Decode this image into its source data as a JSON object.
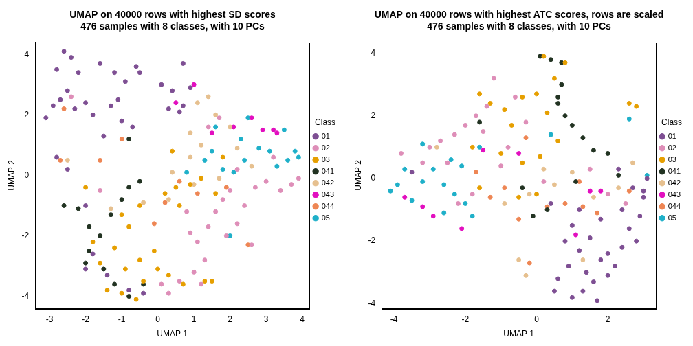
{
  "chart_data": [
    {
      "type": "scatter",
      "title": "UMAP on 40000 rows with highest SD scores\n476 samples with 8 classes, with 10 PCs",
      "x_label": "UMAP 1",
      "y_label": "UMAP 2",
      "legend_title": "Class",
      "legend": "right",
      "grid": false,
      "xlim": [
        -3.4,
        4.2
      ],
      "xticks": [
        -3,
        -2,
        -1,
        0,
        1,
        2,
        3,
        4
      ],
      "ylim": [
        -4.4,
        4.4
      ],
      "yticks": [
        -4,
        -2,
        0,
        2,
        4
      ],
      "series": [
        {
          "name": "01",
          "color": "#7E4F93",
          "x": [
            -2.8,
            -2.6,
            -2.4,
            -2.2,
            -2.9,
            -3.1,
            -2.7,
            -2.3,
            -2.0,
            -1.8,
            -1.6,
            -1.2,
            -0.9,
            -0.6,
            -0.5,
            -1.5,
            -1.0,
            -0.7,
            -2.8,
            -2.5,
            0.1,
            0.4,
            0.7,
            0.9,
            0.3,
            0.6,
            -2.0,
            -1.8,
            -2.0,
            -1.4,
            -0.8,
            -0.4,
            0.7,
            -1.3,
            -2.5,
            -1.1
          ],
          "y": [
            3.5,
            4.1,
            3.9,
            3.4,
            2.3,
            1.9,
            2.5,
            2.2,
            2.4,
            2.0,
            3.7,
            3.4,
            3.1,
            3.6,
            3.4,
            1.3,
            1.8,
            1.6,
            0.6,
            0.2,
            3.0,
            2.8,
            3.7,
            2.9,
            2.2,
            2.1,
            -1.0,
            -2.6,
            -3.1,
            -3.3,
            -3.8,
            -3.9,
            2.3,
            2.3,
            2.8,
            2.5
          ]
        },
        {
          "name": "02",
          "color": "#DE8EB8",
          "x": [
            0.6,
            1.0,
            1.3,
            1.1,
            1.4,
            1.6,
            1.8,
            2.0,
            2.4,
            2.7,
            3.0,
            3.4,
            3.7,
            3.9,
            2.2,
            0.9,
            1.2,
            0.3,
            2.2,
            1.9,
            1.4,
            1.7,
            -2.4,
            -1.6,
            0.8,
            2.6,
            3.2,
            0.1
          ],
          "y": [
            -3.5,
            -3.2,
            -2.8,
            -2.2,
            -1.7,
            -1.2,
            -0.8,
            -0.5,
            -1.0,
            -0.4,
            -0.2,
            -0.5,
            -0.3,
            -0.1,
            0.2,
            -1.9,
            -3.6,
            -3.9,
            -1.6,
            -2.0,
            1.6,
            1.9,
            2.6,
            -0.5,
            -1.2,
            -2.3,
            0.6,
            -3.6
          ]
        },
        {
          "name": "03",
          "color": "#E69F00",
          "x": [
            -1.8,
            -1.6,
            -1.2,
            -0.9,
            -0.5,
            0.0,
            0.3,
            -1.0,
            -0.6,
            -1.4,
            -0.4,
            -0.1,
            -1.0,
            -0.8,
            -2.0,
            -0.5,
            0.2,
            0.5,
            0.9,
            1.2,
            1.6,
            0.7,
            1.3,
            1.5,
            0.4,
            0.6,
            1.8
          ],
          "y": [
            -2.2,
            -2.9,
            -2.4,
            -3.1,
            -2.8,
            -3.1,
            -3.3,
            -3.9,
            -4.1,
            -3.8,
            -3.5,
            -2.5,
            -1.3,
            -1.7,
            -0.4,
            -1.0,
            -0.6,
            -0.4,
            -0.3,
            -0.1,
            -0.6,
            -3.6,
            -3.5,
            -3.5,
            0.8,
            -1.0,
            0.6
          ]
        },
        {
          "name": "041",
          "color": "#223322",
          "x": [
            -2.6,
            -2.2,
            -1.9,
            -1.6,
            -1.9,
            -2.0,
            -1.5,
            -1.0,
            -0.8,
            -1.2,
            -0.8,
            -0.4,
            -0.8,
            -1.3,
            -0.5
          ],
          "y": [
            -1.0,
            -1.1,
            -1.7,
            -2.0,
            -2.5,
            -2.9,
            -3.1,
            -0.8,
            -0.4,
            -3.6,
            -4.0,
            -3.6,
            1.2,
            -1.3,
            -0.2
          ]
        },
        {
          "name": "042",
          "color": "#E6C08F",
          "x": [
            1.1,
            1.4,
            1.6,
            0.9,
            1.2,
            0.9,
            1.0,
            0.4,
            0.3,
            -0.4,
            1.7,
            2.2,
            2.6,
            -1.3,
            -2.5,
            2.0
          ],
          "y": [
            2.4,
            2.6,
            2.0,
            1.4,
            1.0,
            0.6,
            -0.3,
            0.1,
            -0.8,
            -0.9,
            -0.1,
            0.9,
            0.3,
            -1.1,
            0.5,
            1.6
          ]
        },
        {
          "name": "043",
          "color": "#E20FBF",
          "x": [
            1.0,
            1.5,
            2.1,
            2.6,
            2.9,
            3.2,
            3.3,
            0.5
          ],
          "y": [
            3.0,
            1.4,
            1.6,
            1.9,
            1.5,
            1.5,
            1.4,
            2.4
          ]
        },
        {
          "name": "044",
          "color": "#EE8654",
          "x": [
            -2.6,
            -2.7,
            -1.0,
            1.1,
            0.2,
            -0.1,
            0.6,
            2.5,
            -1.6,
            1.9
          ],
          "y": [
            2.2,
            0.5,
            1.2,
            -0.6,
            -0.9,
            -1.6,
            -0.2,
            -2.3,
            0.5,
            -0.4
          ]
        },
        {
          "name": "05",
          "color": "#1FB0C9",
          "x": [
            1.5,
            1.8,
            2.1,
            2.4,
            2.8,
            3.1,
            3.3,
            3.6,
            3.8,
            3.9,
            2.3,
            2.5,
            2.0,
            1.6,
            1.3,
            0.8,
            3.5
          ],
          "y": [
            0.8,
            0.2,
            0.1,
            0.5,
            0.9,
            0.8,
            0.3,
            0.5,
            0.8,
            0.6,
            1.2,
            1.9,
            -2.0,
            1.6,
            0.5,
            0.1,
            1.5
          ]
        }
      ]
    },
    {
      "type": "scatter",
      "title": "UMAP on 40000 rows with highest ATC scores, rows are scaled\n476 samples with 8 classes, with 10 PCs",
      "x_label": "UMAP 1",
      "y_label": "UMAP 2",
      "legend_title": "Class",
      "legend": "right",
      "grid": false,
      "xlim": [
        -4.35,
        3.35
      ],
      "xticks": [
        -4,
        -2,
        0,
        2
      ],
      "ylim": [
        -4.15,
        4.35
      ],
      "yticks": [
        -4,
        -2,
        0,
        2,
        4
      ],
      "series": [
        {
          "name": "01",
          "color": "#7E4F93",
          "x": [
            1.0,
            1.3,
            1.6,
            2.0,
            2.2,
            1.8,
            1.2,
            0.8,
            1.5,
            2.4,
            2.6,
            2.9,
            3.0,
            2.7,
            3.1,
            2.3,
            1.8,
            1.0,
            0.6,
            0.9,
            1.4,
            2.0,
            2.8,
            3.0,
            1.2,
            0.4,
            -3.5,
            0.5,
            1.7,
            2.4
          ],
          "y": [
            -3.8,
            -3.6,
            -3.3,
            -3.1,
            -2.8,
            -2.6,
            -2.3,
            -2.0,
            -1.9,
            -2.2,
            -1.6,
            -1.2,
            -0.6,
            -0.3,
            0.0,
            0.3,
            -1.3,
            -1.5,
            -3.2,
            -2.8,
            -3.0,
            -2.4,
            -2.0,
            -0.4,
            -1.0,
            -0.8,
            0.2,
            -3.6,
            -3.9,
            -1.0
          ]
        },
        {
          "name": "02",
          "color": "#DE8EB8",
          "x": [
            -3.0,
            -2.7,
            -2.3,
            -2.0,
            -1.7,
            -1.4,
            -1.2,
            -1.5,
            -2.5,
            -3.2,
            -3.8,
            -1.0,
            -0.8,
            -0.3,
            -1.8,
            -2.2,
            0.2,
            2.0,
            2.5,
            -0.6,
            1.5
          ],
          "y": [
            1.0,
            1.2,
            1.4,
            1.7,
            2.0,
            2.3,
            3.2,
            1.5,
            0.5,
            0.5,
            0.8,
            0.4,
            1.0,
            1.8,
            -0.5,
            -0.8,
            -0.1,
            -0.5,
            -0.8,
            2.6,
            0.3
          ]
        },
        {
          "name": "03",
          "color": "#E69F00",
          "x": [
            -1.6,
            -1.3,
            -0.9,
            -0.4,
            0.0,
            0.3,
            0.5,
            0.8,
            0.2,
            -0.7,
            -1.0,
            -0.4,
            -1.6,
            -0.5,
            0.1,
            0.6,
            2.6,
            2.8,
            -1.8,
            0.0
          ],
          "y": [
            2.7,
            2.4,
            2.2,
            2.6,
            2.7,
            2.1,
            3.2,
            3.7,
            3.9,
            1.7,
            0.8,
            0.5,
            -0.3,
            -0.6,
            0.7,
            1.2,
            2.4,
            2.3,
            1.0,
            -0.5
          ]
        },
        {
          "name": "041",
          "color": "#223322",
          "x": [
            0.1,
            0.4,
            0.7,
            0.7,
            0.6,
            0.8,
            1.0,
            1.3,
            1.6,
            0.6,
            -0.1,
            0.3,
            -0.4,
            2.3,
            -1.6,
            1.1,
            2.0
          ],
          "y": [
            3.9,
            3.8,
            3.7,
            3.0,
            2.4,
            2.0,
            1.7,
            1.3,
            0.9,
            2.6,
            -1.2,
            -1.0,
            -0.3,
            0.1,
            1.8,
            -0.1,
            0.8
          ]
        },
        {
          "name": "042",
          "color": "#E6C08F",
          "x": [
            2.3,
            1.6,
            1.0,
            0.2,
            -0.2,
            -0.5,
            -0.3,
            0.5,
            1.3,
            2.7,
            -0.9,
            -2.8
          ],
          "y": [
            -0.3,
            -0.6,
            0.2,
            0.3,
            -0.5,
            -2.6,
            -3.1,
            -0.2,
            -2.6,
            0.5,
            -0.8,
            1.0
          ]
        },
        {
          "name": "043",
          "color": "#E20FBF",
          "x": [
            -3.7,
            -3.2,
            -2.9,
            -2.1,
            1.5,
            1.8,
            1.1,
            -0.5,
            -1.5
          ],
          "y": [
            -0.6,
            -0.9,
            -1.2,
            -1.6,
            -0.4,
            -0.4,
            -1.8,
            0.8,
            0.9
          ]
        },
        {
          "name": "044",
          "color": "#EE8654",
          "x": [
            -1.7,
            -1.3,
            -0.9,
            -0.5,
            0.3,
            0.8,
            1.3,
            1.7,
            -0.2,
            2.6,
            -0.3,
            1.2
          ],
          "y": [
            0.2,
            -0.6,
            -0.3,
            -1.3,
            -0.9,
            -0.8,
            -0.9,
            -1.1,
            -2.7,
            -0.4,
            1.3,
            -0.1
          ]
        },
        {
          "name": "05",
          "color": "#1FB0C9",
          "x": [
            -4.1,
            -3.9,
            -3.7,
            -3.5,
            -3.2,
            -2.9,
            -2.6,
            -2.3,
            -2.0,
            -1.8,
            -2.4,
            -3.2,
            -2.1,
            -2.6,
            2.6,
            3.1,
            0.4,
            -1.6
          ],
          "y": [
            -0.4,
            -0.2,
            0.3,
            -0.7,
            -0.1,
            0.3,
            -0.2,
            -0.5,
            -0.8,
            -1.2,
            0.6,
            1.1,
            0.4,
            -1.1,
            1.9,
            0.1,
            1.4,
            1.0
          ]
        }
      ]
    }
  ]
}
